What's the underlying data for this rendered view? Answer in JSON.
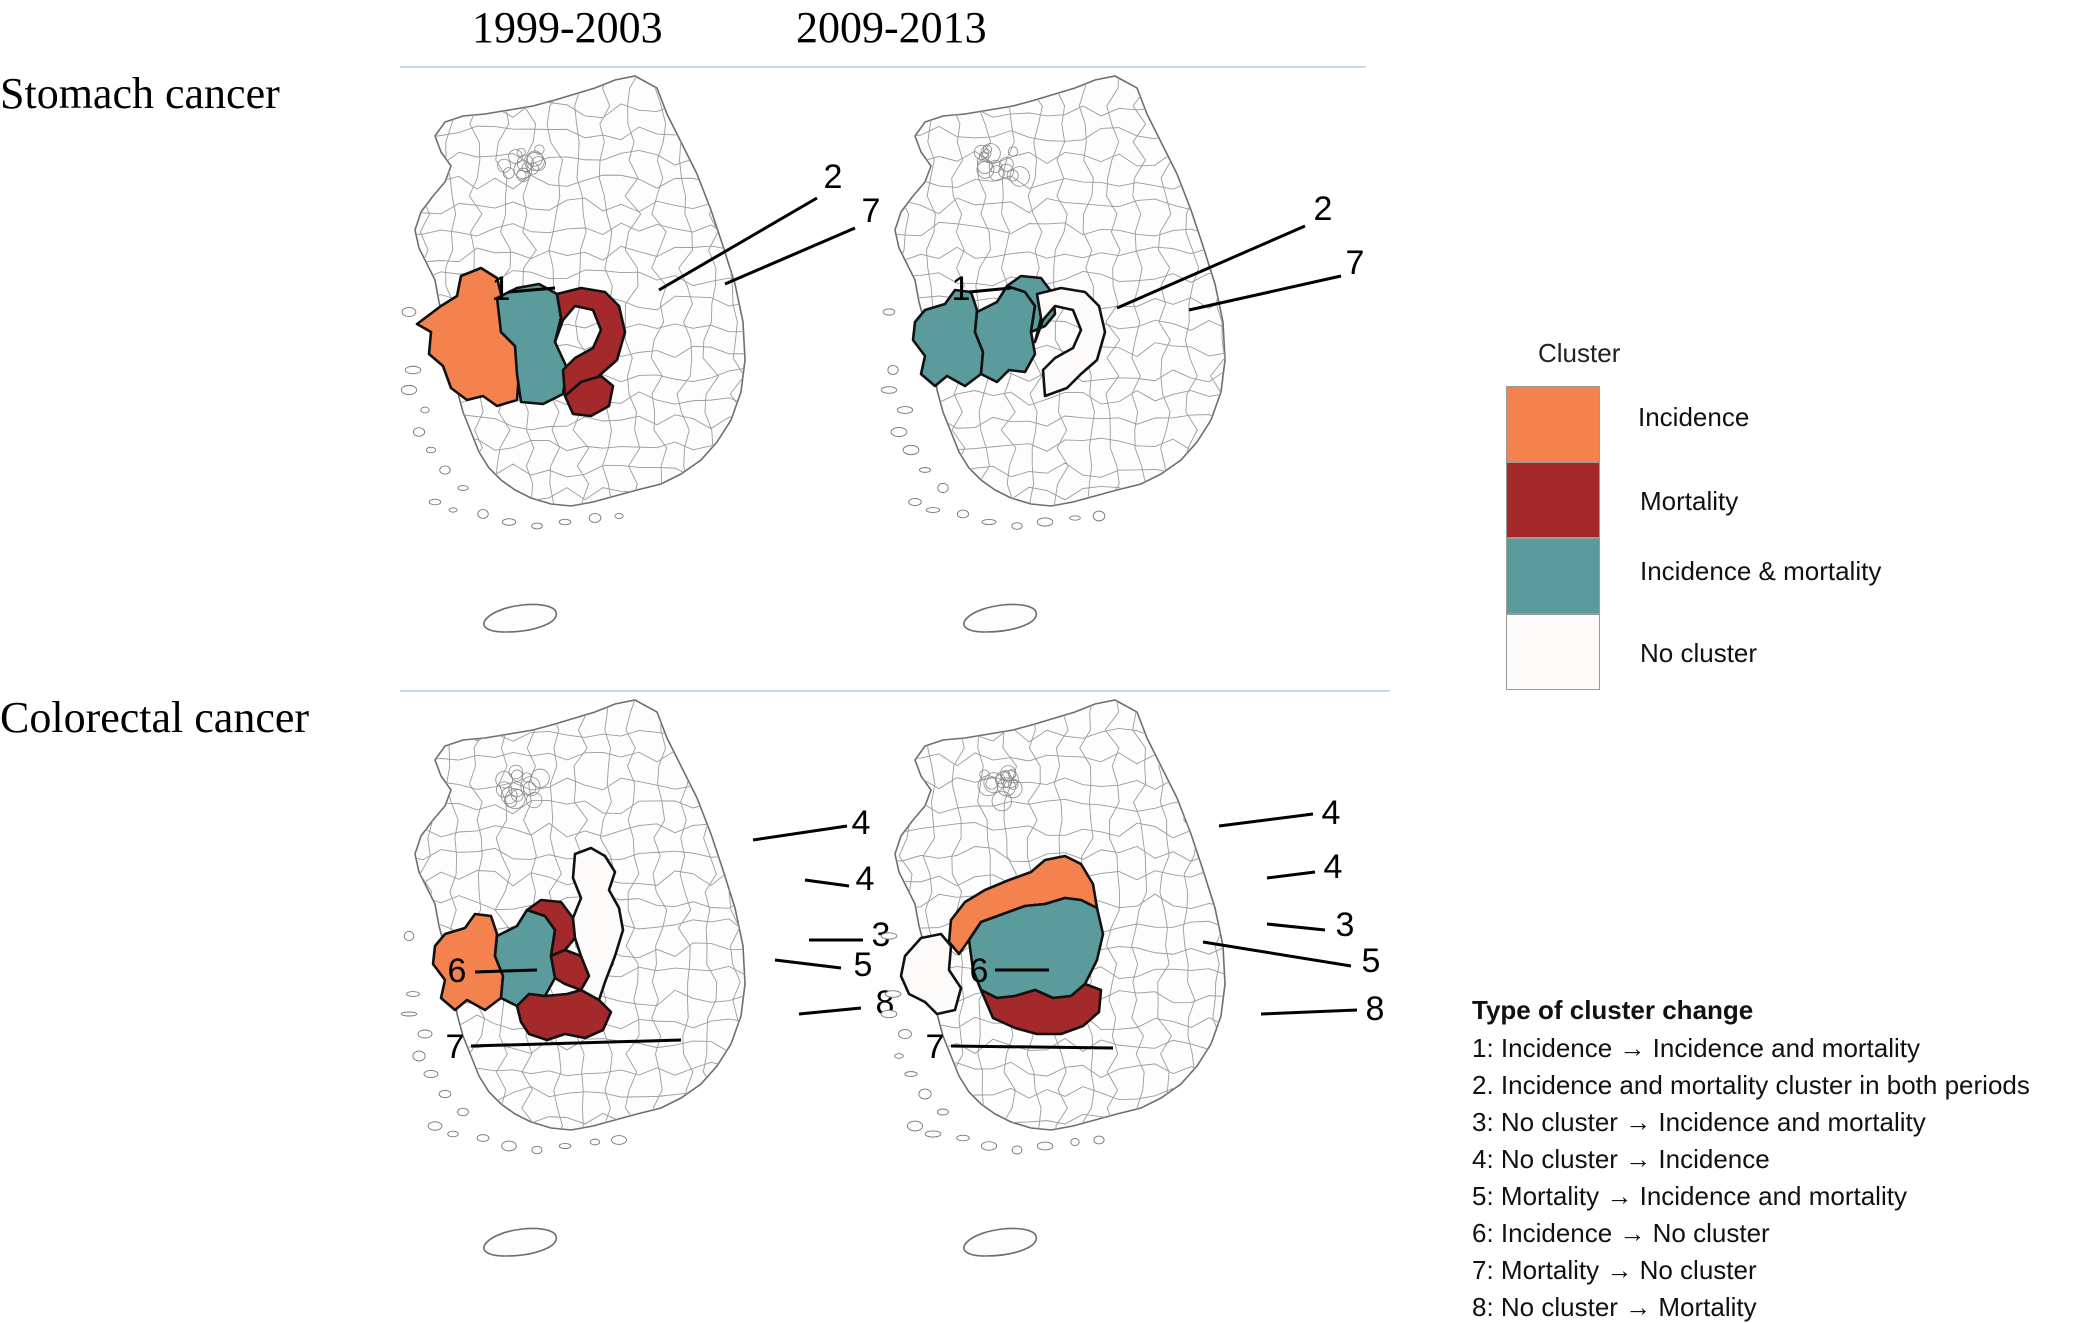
{
  "periods": [
    "1999-2003",
    "2009-2013"
  ],
  "rows": [
    "Stomach cancer",
    "Colorectal cancer"
  ],
  "legend": {
    "title": "Cluster",
    "items": [
      {
        "label": "Incidence",
        "color": "#F4824E"
      },
      {
        "label": "Mortality",
        "color": "#A3292A"
      },
      {
        "label": "Incidence & mortality",
        "color": "#5C9B9C"
      },
      {
        "label": "No cluster",
        "color": "#FDFAFA"
      }
    ]
  },
  "change_types": {
    "title": "Type of cluster change",
    "items": [
      "1: Incidence → Incidence and mortality",
      "2. Incidence and mortality cluster in both periods",
      "3: No cluster → Incidence and mortality",
      "4: No cluster → Incidence",
      "5: Mortality → Incidence and mortality",
      "6: Incidence → No cluster",
      "7: Mortality → No cluster",
      "8: No cluster → Mortality"
    ]
  },
  "map_labels": {
    "stomach_1999": [
      "1",
      "2",
      "7"
    ],
    "stomach_2009": [
      "1",
      "2",
      "7"
    ],
    "colorectal_1999": [
      "4",
      "4",
      "3",
      "6",
      "5",
      "8",
      "7"
    ],
    "colorectal_2009": [
      "4",
      "4",
      "3",
      "6",
      "5",
      "7",
      "8"
    ]
  }
}
